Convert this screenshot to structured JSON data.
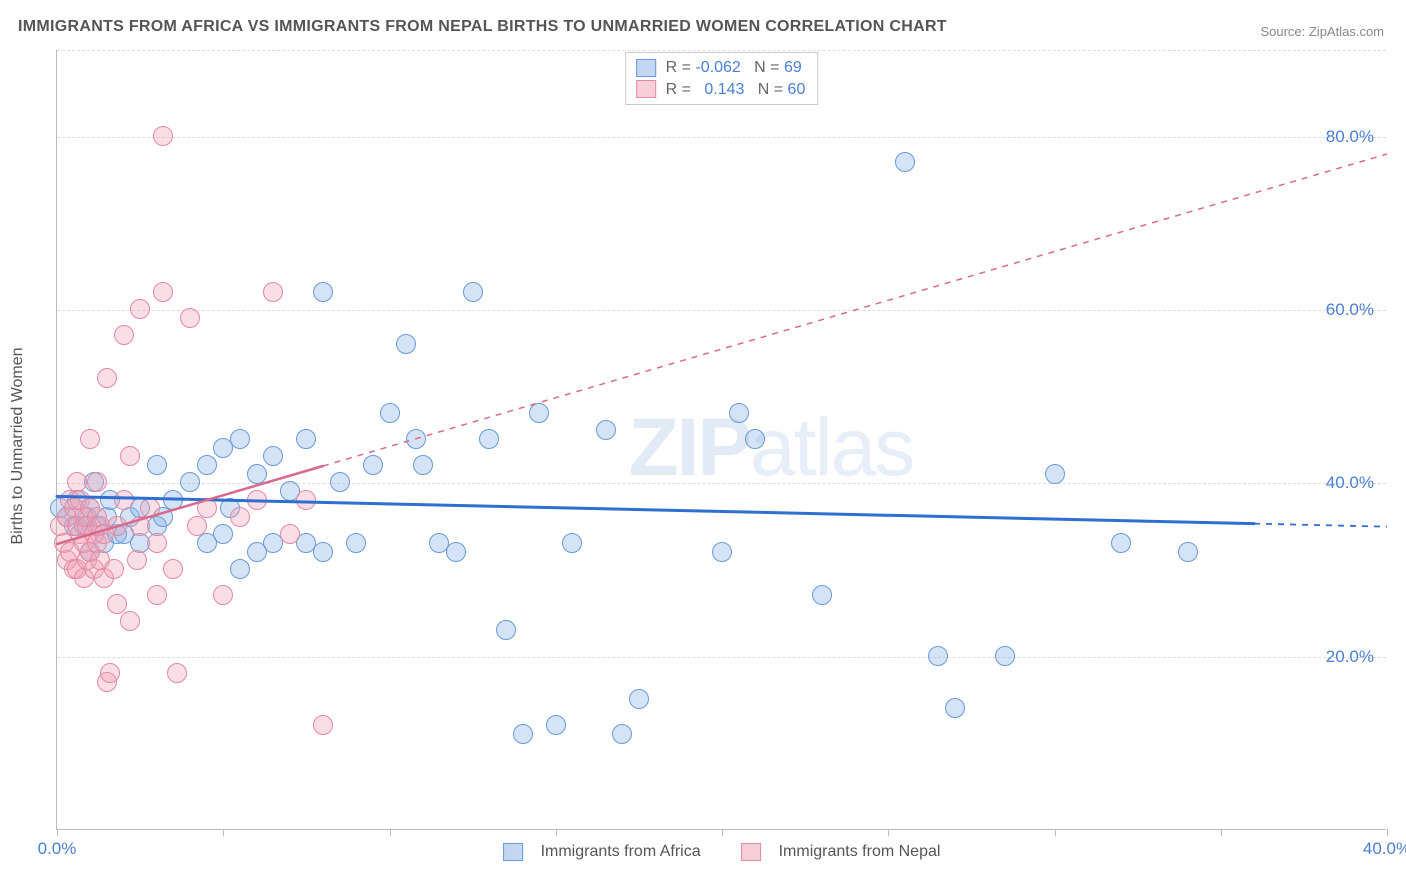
{
  "title": "IMMIGRANTS FROM AFRICA VS IMMIGRANTS FROM NEPAL BIRTHS TO UNMARRIED WOMEN CORRELATION CHART",
  "source": "Source: ZipAtlas.com",
  "yaxis_title": "Births to Unmarried Women",
  "watermark_bold": "ZIP",
  "watermark_thin": "atlas",
  "chart": {
    "type": "scatter",
    "xlim": [
      0,
      40
    ],
    "ylim": [
      0,
      90
    ],
    "yticks": [
      20,
      40,
      60,
      80
    ],
    "ytick_labels": [
      "20.0%",
      "40.0%",
      "60.0%",
      "80.0%"
    ],
    "xticks": [
      0,
      5,
      10,
      15,
      20,
      25,
      30,
      35,
      40
    ],
    "xtick_labels_shown": {
      "0": "0.0%",
      "40": "40.0%"
    },
    "background_color": "#ffffff",
    "grid_color": "#dddddd",
    "axis_color": "#bbbbbb",
    "tick_label_color": "#4a7fd4",
    "point_radius": 10,
    "series": [
      {
        "name": "Immigrants from Africa",
        "color_fill": "rgba(135,175,230,0.35)",
        "color_stroke": "#6a9bd8",
        "R": "-0.062",
        "N": "69",
        "trend": {
          "x1": 0,
          "y1": 38.5,
          "x2": 40,
          "y2": 35.0,
          "solid_until_x": 36,
          "color": "#2e6fd0",
          "width": 3
        },
        "points": [
          [
            0.1,
            37
          ],
          [
            0.3,
            36
          ],
          [
            0.5,
            35
          ],
          [
            0.6,
            38
          ],
          [
            0.8,
            35
          ],
          [
            0.9,
            36
          ],
          [
            1.0,
            37
          ],
          [
            1.0,
            32
          ],
          [
            1.1,
            40
          ],
          [
            1.2,
            35
          ],
          [
            1.4,
            33
          ],
          [
            1.5,
            36
          ],
          [
            1.6,
            38
          ],
          [
            1.8,
            34
          ],
          [
            2.0,
            34
          ],
          [
            2.2,
            36
          ],
          [
            2.5,
            37
          ],
          [
            2.5,
            33
          ],
          [
            3.0,
            35
          ],
          [
            3.0,
            42
          ],
          [
            3.2,
            36
          ],
          [
            3.5,
            38
          ],
          [
            4.0,
            40
          ],
          [
            4.5,
            33
          ],
          [
            4.5,
            42
          ],
          [
            5.0,
            44
          ],
          [
            5.0,
            34
          ],
          [
            5.2,
            37
          ],
          [
            5.5,
            45
          ],
          [
            5.5,
            30
          ],
          [
            6.0,
            32
          ],
          [
            6.0,
            41
          ],
          [
            6.5,
            33
          ],
          [
            6.5,
            43
          ],
          [
            7.0,
            39
          ],
          [
            7.5,
            45
          ],
          [
            7.5,
            33
          ],
          [
            8.0,
            62
          ],
          [
            8.0,
            32
          ],
          [
            8.5,
            40
          ],
          [
            9.0,
            33
          ],
          [
            9.5,
            42
          ],
          [
            10.0,
            48
          ],
          [
            10.5,
            56
          ],
          [
            10.8,
            45
          ],
          [
            11.0,
            42
          ],
          [
            11.5,
            33
          ],
          [
            12.0,
            32
          ],
          [
            12.5,
            62
          ],
          [
            13.0,
            45
          ],
          [
            13.5,
            23
          ],
          [
            14.0,
            11
          ],
          [
            14.5,
            48
          ],
          [
            15.0,
            12
          ],
          [
            15.5,
            33
          ],
          [
            16.5,
            46
          ],
          [
            17.0,
            11
          ],
          [
            17.5,
            15
          ],
          [
            20.0,
            32
          ],
          [
            20.5,
            48
          ],
          [
            21.0,
            45
          ],
          [
            23.0,
            27
          ],
          [
            25.5,
            77
          ],
          [
            26.5,
            20
          ],
          [
            27.0,
            14
          ],
          [
            28.5,
            20
          ],
          [
            30.0,
            41
          ],
          [
            32.0,
            33
          ],
          [
            34.0,
            32
          ]
        ]
      },
      {
        "name": "Immigrants from Nepal",
        "color_fill": "rgba(240,160,180,0.35)",
        "color_stroke": "#e48aa4",
        "R": "0.143",
        "N": "60",
        "trend": {
          "x1": 0,
          "y1": 33.0,
          "x2": 40,
          "y2": 78.0,
          "solid_until_x": 8,
          "color": "#d96a8a",
          "width": 2.5
        },
        "points": [
          [
            0.1,
            35
          ],
          [
            0.2,
            33
          ],
          [
            0.3,
            36
          ],
          [
            0.3,
            31
          ],
          [
            0.4,
            38
          ],
          [
            0.4,
            32
          ],
          [
            0.5,
            37
          ],
          [
            0.5,
            30
          ],
          [
            0.6,
            35
          ],
          [
            0.6,
            40
          ],
          [
            0.6,
            30
          ],
          [
            0.7,
            34
          ],
          [
            0.7,
            38
          ],
          [
            0.8,
            33
          ],
          [
            0.8,
            36
          ],
          [
            0.8,
            29
          ],
          [
            0.9,
            35
          ],
          [
            0.9,
            31
          ],
          [
            1.0,
            37
          ],
          [
            1.0,
            32
          ],
          [
            1.0,
            45
          ],
          [
            1.1,
            34
          ],
          [
            1.1,
            30
          ],
          [
            1.2,
            36
          ],
          [
            1.2,
            33
          ],
          [
            1.2,
            40
          ],
          [
            1.3,
            35
          ],
          [
            1.3,
            31
          ],
          [
            1.4,
            29
          ],
          [
            1.4,
            34
          ],
          [
            1.5,
            17
          ],
          [
            1.5,
            52
          ],
          [
            1.6,
            18
          ],
          [
            1.7,
            30
          ],
          [
            1.8,
            35
          ],
          [
            1.8,
            26
          ],
          [
            2.0,
            38
          ],
          [
            2.0,
            57
          ],
          [
            2.2,
            24
          ],
          [
            2.2,
            43
          ],
          [
            2.4,
            31
          ],
          [
            2.5,
            60
          ],
          [
            2.5,
            35
          ],
          [
            2.8,
            37
          ],
          [
            3.0,
            27
          ],
          [
            3.0,
            33
          ],
          [
            3.2,
            80
          ],
          [
            3.2,
            62
          ],
          [
            3.5,
            30
          ],
          [
            3.6,
            18
          ],
          [
            4.0,
            59
          ],
          [
            4.2,
            35
          ],
          [
            4.5,
            37
          ],
          [
            5.0,
            27
          ],
          [
            5.5,
            36
          ],
          [
            6.0,
            38
          ],
          [
            6.5,
            62
          ],
          [
            7.0,
            34
          ],
          [
            7.5,
            38
          ],
          [
            8.0,
            12
          ]
        ]
      }
    ]
  },
  "legend": {
    "series1_label": "Immigrants from Africa",
    "series2_label": "Immigrants from Nepal"
  },
  "stats_labels": {
    "R": "R = ",
    "N": "N = "
  }
}
